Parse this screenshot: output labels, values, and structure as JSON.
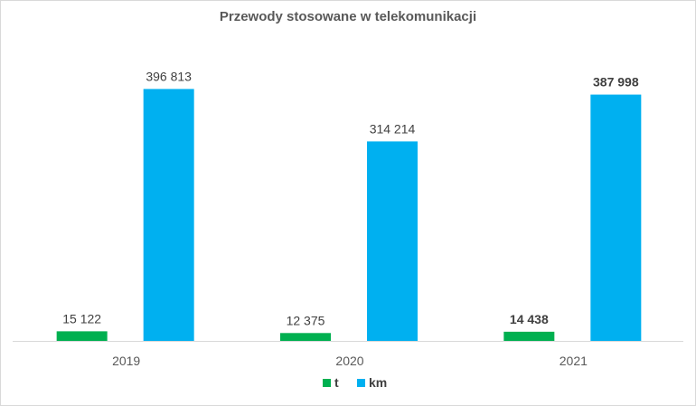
{
  "chart_data": {
    "type": "bar",
    "title": "Przewody stosowane w telekomunikacji",
    "xlabel": "",
    "ylabel": "",
    "categories": [
      "2019",
      "2020",
      "2021"
    ],
    "series": [
      {
        "name": "t",
        "color": "#00b050",
        "values": [
          15122,
          12375,
          14438
        ],
        "labels": [
          "15 122",
          "12 375",
          "14 438"
        ],
        "bold": [
          false,
          false,
          true
        ]
      },
      {
        "name": "km",
        "color": "#00b0f0",
        "values": [
          396813,
          314214,
          387998
        ],
        "labels": [
          "396 813",
          "314 214",
          "387 998"
        ],
        "bold": [
          false,
          false,
          true
        ]
      }
    ],
    "ylim": [
      0,
      480000
    ],
    "grid": false,
    "legend_position": "bottom"
  }
}
